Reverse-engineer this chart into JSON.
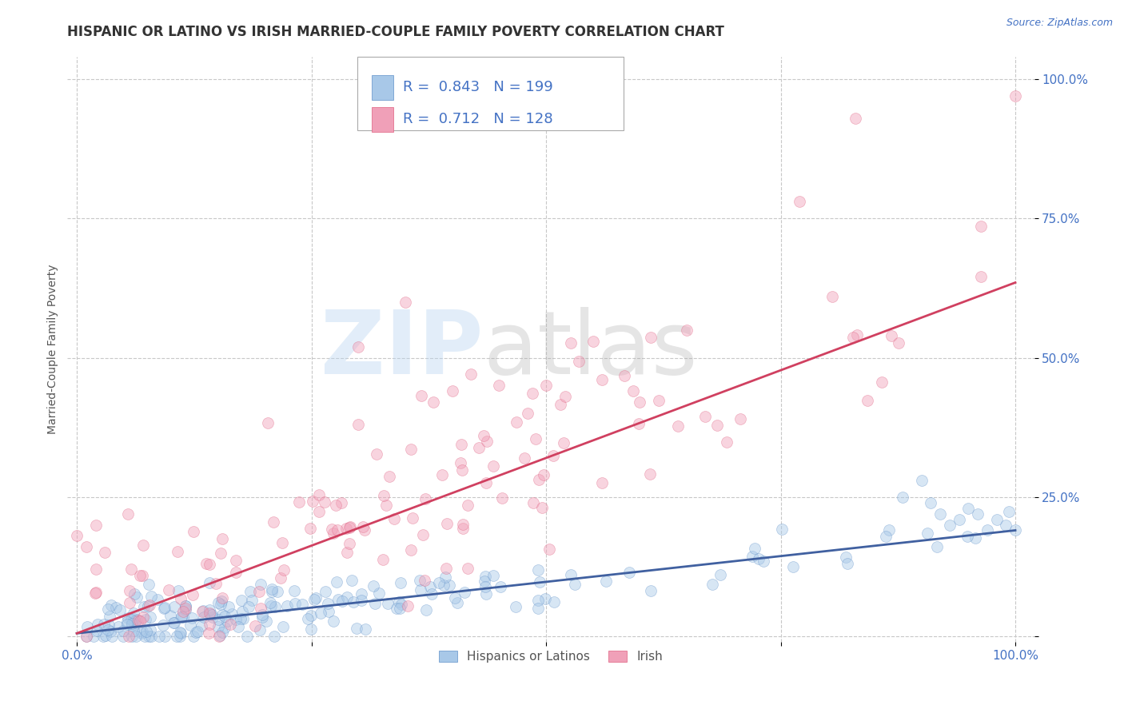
{
  "title": "HISPANIC OR LATINO VS IRISH MARRIED-COUPLE FAMILY POVERTY CORRELATION CHART",
  "source": "Source: ZipAtlas.com",
  "ylabel": "Married-Couple Family Poverty",
  "x_tick_labels": [
    "0.0%",
    "",
    "",
    "",
    "100.0%"
  ],
  "y_tick_labels": [
    "",
    "25.0%",
    "50.0%",
    "75.0%",
    "100.0%"
  ],
  "x_tick_vals": [
    0,
    0.25,
    0.5,
    0.75,
    1.0
  ],
  "y_tick_vals": [
    0,
    0.25,
    0.5,
    0.75,
    1.0
  ],
  "blue_color": "#a8c8e8",
  "pink_color": "#f0a0b8",
  "blue_line_color": "#4060a0",
  "pink_line_color": "#d04060",
  "blue_scatter_edge": "#6090c8",
  "pink_scatter_edge": "#e06080",
  "blue_label": "Hispanics or Latinos",
  "pink_label": "Irish",
  "R_blue": 0.843,
  "N_blue": 199,
  "R_pink": 0.712,
  "N_pink": 128,
  "legend_color": "#4472c4",
  "background_color": "#ffffff",
  "title_fontsize": 12,
  "axis_label_fontsize": 10,
  "tick_fontsize": 11,
  "legend_fontsize": 13,
  "scatter_alpha": 0.45,
  "scatter_size": 100,
  "grid_color": "#c8c8c8",
  "grid_style": "--",
  "blue_trend_slope": 0.185,
  "blue_trend_intercept": 0.005,
  "pink_trend_slope": 0.63,
  "pink_trend_intercept": 0.005
}
